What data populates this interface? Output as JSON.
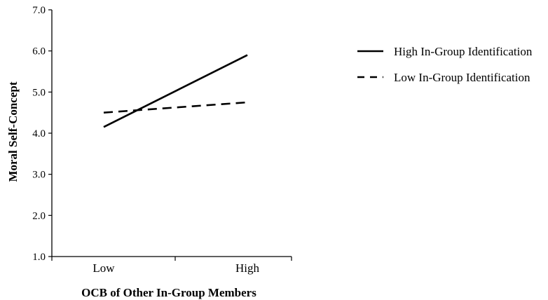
{
  "chart_data": {
    "type": "line",
    "categories": [
      "Low",
      "High"
    ],
    "series": [
      {
        "name": "High In-Group Identification",
        "values": [
          4.15,
          5.9
        ],
        "line_style": "solid",
        "color": "#000000"
      },
      {
        "name": "Low In-Group Identification",
        "values": [
          4.5,
          4.75
        ],
        "line_style": "dashed",
        "color": "#000000"
      }
    ],
    "title": "",
    "xlabel": "OCB of Other In-Group Members",
    "ylabel": "Moral Self-Concept",
    "ylim": [
      1.0,
      7.0
    ],
    "yticks": [
      "1.0",
      "2.0",
      "3.0",
      "4.0",
      "5.0",
      "6.0",
      "7.0"
    ],
    "grid": false,
    "legend_position": "right"
  }
}
